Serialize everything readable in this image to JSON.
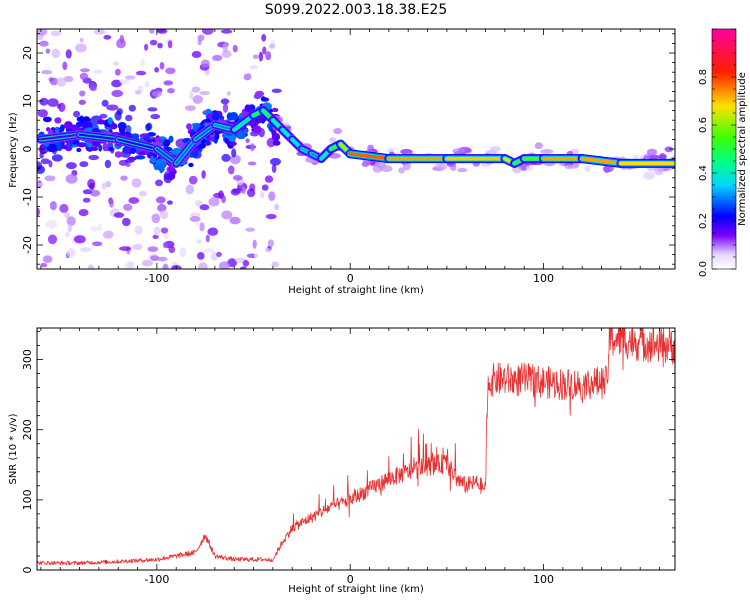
{
  "chart_data": [
    {
      "type": "heatmap",
      "title": "S099.2022.003.18.38.E25",
      "xlabel": "Height of straight line (km)",
      "ylabel": "Frequency (Hz)",
      "xlim": [
        -162,
        168
      ],
      "ylim": [
        -25,
        25
      ],
      "x_ticks": [
        -100,
        0,
        100
      ],
      "y_ticks": [
        -20,
        -10,
        0,
        10,
        20
      ],
      "colorbar": {
        "label": "Normalized spectral amplitude",
        "range": [
          0.0,
          1.0
        ],
        "ticks": [
          0.0,
          0.2,
          0.4,
          0.6,
          0.8
        ],
        "tick_labels": [
          "0.0",
          "0.2",
          "0.4",
          "0.6",
          "0.8"
        ],
        "colormap": [
          "#ffffff",
          "#6a00ff",
          "#0000ff",
          "#00d8ff",
          "#00ff40",
          "#ffe000",
          "#ff0000",
          "#ff00a0"
        ]
      },
      "ridge": {
        "x": [
          -160,
          -140,
          -120,
          -100,
          -90,
          -80,
          -70,
          -60,
          -50,
          -45,
          -40,
          -35,
          -30,
          -25,
          -20,
          -15,
          -10,
          -5,
          0,
          20,
          50,
          80,
          85,
          90,
          100,
          120,
          140,
          168
        ],
        "y": [
          2,
          3,
          2,
          0,
          -3,
          2,
          5,
          4,
          7,
          8,
          6,
          4,
          2,
          0,
          -1,
          -2,
          0,
          1,
          -1,
          -2,
          -2,
          -2,
          -3,
          -2,
          -2,
          -2,
          -3,
          -3
        ],
        "amplitude": [
          0.15,
          0.2,
          0.2,
          0.2,
          0.3,
          0.25,
          0.3,
          0.3,
          0.45,
          0.5,
          0.45,
          0.4,
          0.35,
          0.35,
          0.3,
          0.3,
          0.45,
          0.55,
          0.7,
          0.85,
          0.6,
          0.8,
          0.5,
          0.5,
          0.6,
          0.85,
          0.6,
          0.75
        ]
      }
    },
    {
      "type": "line",
      "xlabel": "Height of straight line (km)",
      "ylabel": "SNR (10 * v/v)",
      "xlim": [
        -162,
        168
      ],
      "ylim": [
        0,
        345
      ],
      "x_ticks": [
        -100,
        0,
        100
      ],
      "y_ticks": [
        0,
        100,
        200,
        300
      ],
      "color": "#e83030",
      "series": [
        {
          "x": [
            -162,
            -140,
            -120,
            -100,
            -90,
            -80,
            -75,
            -70,
            -60,
            -45,
            -40,
            -35,
            -30,
            -20,
            -10,
            0,
            10,
            20,
            30,
            40,
            50,
            55,
            60,
            65,
            70,
            71,
            72,
            75,
            80,
            85,
            90,
            100,
            110,
            120,
            133,
            134,
            140,
            150,
            160,
            168
          ],
          "y": [
            10,
            10,
            12,
            15,
            20,
            25,
            50,
            20,
            15,
            15,
            15,
            40,
            60,
            75,
            90,
            100,
            115,
            130,
            140,
            148,
            152,
            130,
            120,
            125,
            115,
            260,
            268,
            272,
            272,
            270,
            272,
            268,
            265,
            265,
            268,
            330,
            330,
            325,
            322,
            320
          ]
        }
      ]
    }
  ]
}
